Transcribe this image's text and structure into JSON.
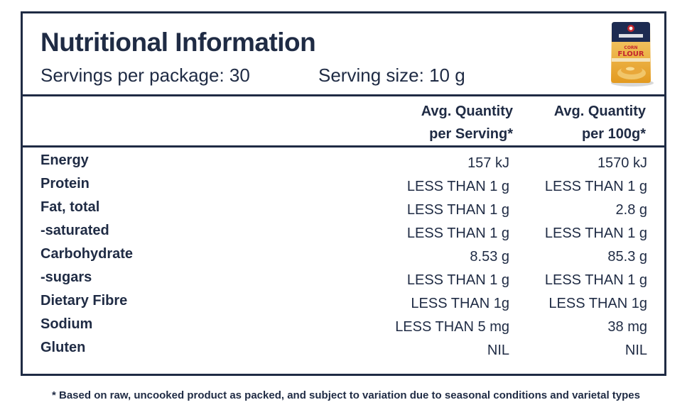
{
  "header": {
    "title": "Nutritional Information",
    "servings_per_package": "Servings per package: 30",
    "serving_size": "Serving size: 10 g"
  },
  "product_image": {
    "icon": "corn-flour-package-icon",
    "brand": "SUNRISE",
    "product_name_line1": "CORN",
    "product_name_line2": "FLOUR"
  },
  "columns": {
    "per_serving_line1": "Avg. Quantity",
    "per_serving_line2": "per Serving*",
    "per_100g_line1": "Avg. Quantity",
    "per_100g_line2": "per 100g*"
  },
  "nutrients": [
    {
      "name": "Energy",
      "per_serving": "157 kJ",
      "per_100g": "1570 kJ"
    },
    {
      "name": "Protein",
      "per_serving": "LESS THAN 1 g",
      "per_100g": "LESS THAN 1 g"
    },
    {
      "name": "Fat, total",
      "per_serving": "LESS THAN 1 g",
      "per_100g": "2.8 g"
    },
    {
      "name": "-saturated",
      "per_serving": "LESS THAN 1 g",
      "per_100g": "LESS THAN 1 g"
    },
    {
      "name": "Carbohydrate",
      "per_serving": "8.53 g",
      "per_100g": "85.3 g"
    },
    {
      "name": "-sugars",
      "per_serving": "LESS THAN 1 g",
      "per_100g": "LESS THAN 1 g"
    },
    {
      "name": "Dietary Fibre",
      "per_serving": "LESS THAN 1g",
      "per_100g": "LESS THAN 1g"
    },
    {
      "name": "Sodium",
      "per_serving": "LESS THAN 5 mg",
      "per_100g": "38 mg"
    },
    {
      "name": "Gluten",
      "per_serving": "NIL",
      "per_100g": "NIL"
    }
  ],
  "footnote": "* Based on raw, uncooked product as packed, and subject to variation due to seasonal conditions and varietal types",
  "colors": {
    "ink": "#1f2b44",
    "package_navy": "#1d2b52",
    "package_red": "#c4262e",
    "package_gold": "#e8a32a",
    "package_cream": "#f4e2b8"
  }
}
